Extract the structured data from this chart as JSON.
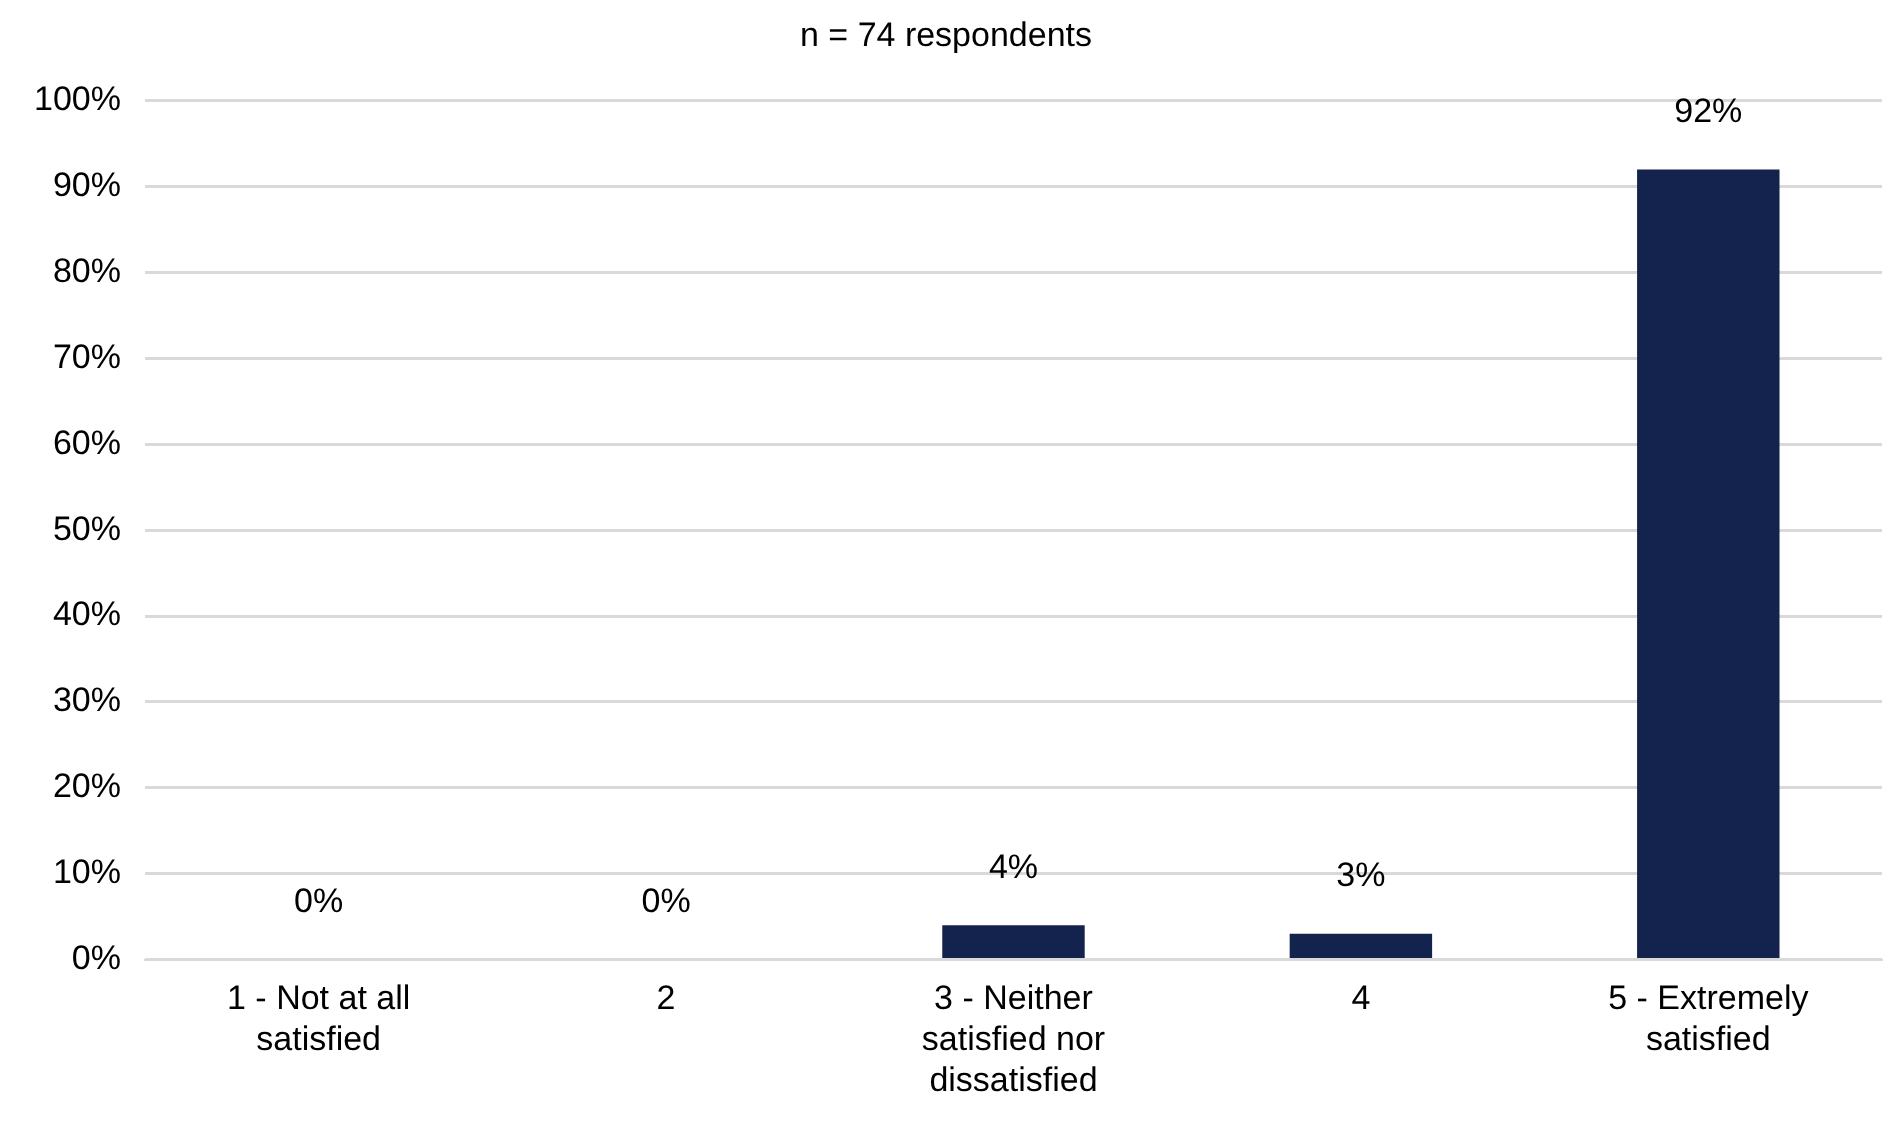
{
  "chart_data": {
    "type": "bar",
    "title": "n = 74 respondents",
    "categories": [
      "1 - Not at all satisfied",
      "2",
      "3 - Neither satisfied nor dissatisfied",
      "4",
      "5 - Extremely satisfied"
    ],
    "values": [
      0,
      0,
      4,
      3,
      92
    ],
    "color": "#14224e",
    "ylim": [
      0,
      100
    ],
    "yticks": [
      {
        "value": 0,
        "label": "0%"
      },
      {
        "value": 10,
        "label": "10%"
      },
      {
        "value": 20,
        "label": "20%"
      },
      {
        "value": 30,
        "label": "30%"
      },
      {
        "value": 40,
        "label": "40%"
      },
      {
        "value": 50,
        "label": "50%"
      },
      {
        "value": 60,
        "label": "60%"
      },
      {
        "value": 70,
        "label": "70%"
      },
      {
        "value": 80,
        "label": "80%"
      },
      {
        "value": 90,
        "label": "90%"
      },
      {
        "value": 100,
        "label": "100%"
      }
    ],
    "value_labels": [
      "0%",
      "0%",
      "4%",
      "3%",
      "92%"
    ],
    "grid": "y",
    "legend": false
  }
}
